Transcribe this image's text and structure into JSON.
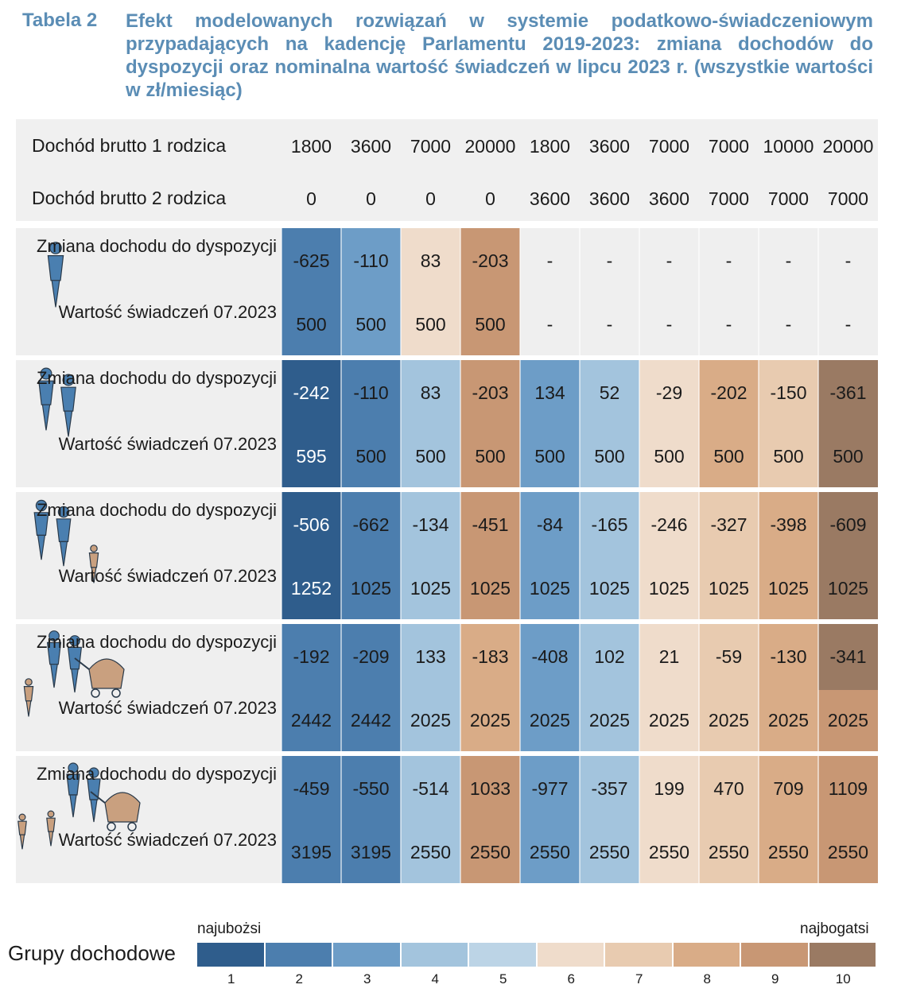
{
  "caption": {
    "label": "Tabela 2",
    "text": "Efekt modelowanych rozwiązań w systemie podatkowo-świadczeniowym przypadających na kadencję Parlamentu 2019-2023: zmiana dochodów do dyspozycji oraz nominalna wartość świadczeń w lipcu 2023 r. (wszystkie wartości w zł/miesiąc)"
  },
  "header": {
    "parent1_label": "Dochód brutto 1 rodzica",
    "parent2_label": "Dochód brutto 2 rodzica",
    "parent1": [
      "1800",
      "3600",
      "7000",
      "20000",
      "1800",
      "3600",
      "7000",
      "7000",
      "10000",
      "20000"
    ],
    "parent2": [
      "0",
      "0",
      "0",
      "0",
      "3600",
      "3600",
      "3600",
      "7000",
      "7000",
      "7000"
    ]
  },
  "row_labels": {
    "change": "Zmiana dochodu do dyspozycji",
    "benefit": "Wartość świadczeń 07.2023"
  },
  "families": [
    {
      "icon": "single-parent-one-child-icon",
      "change": [
        "-625",
        "-110",
        "83",
        "-203",
        "-",
        "-",
        "-",
        "-",
        "-",
        "-"
      ],
      "benefit": [
        "500",
        "500",
        "500",
        "500",
        "-",
        "-",
        "-",
        "-",
        "-",
        "-"
      ],
      "change_groups": [
        2,
        3,
        6,
        9,
        0,
        0,
        0,
        0,
        0,
        0
      ],
      "benefit_groups": [
        2,
        3,
        6,
        9,
        0,
        0,
        0,
        0,
        0,
        0
      ]
    },
    {
      "icon": "couple-one-child-icon",
      "change": [
        "-242",
        "-110",
        "83",
        "-203",
        "134",
        "52",
        "-29",
        "-202",
        "-150",
        "-361"
      ],
      "benefit": [
        "595",
        "500",
        "500",
        "500",
        "500",
        "500",
        "500",
        "500",
        "500",
        "500"
      ],
      "change_groups": [
        1,
        2,
        4,
        9,
        3,
        4,
        6,
        8,
        7,
        10
      ],
      "benefit_groups": [
        1,
        2,
        4,
        9,
        3,
        4,
        6,
        8,
        7,
        10
      ]
    },
    {
      "icon": "couple-two-children-icon",
      "change": [
        "-506",
        "-662",
        "-134",
        "-451",
        "-84",
        "-165",
        "-246",
        "-327",
        "-398",
        "-609"
      ],
      "benefit": [
        "1252",
        "1025",
        "1025",
        "1025",
        "1025",
        "1025",
        "1025",
        "1025",
        "1025",
        "1025"
      ],
      "change_groups": [
        1,
        2,
        4,
        9,
        3,
        4,
        6,
        7,
        8,
        10
      ],
      "benefit_groups": [
        1,
        2,
        4,
        9,
        3,
        4,
        6,
        7,
        8,
        10
      ]
    },
    {
      "icon": "couple-two-children-stroller-icon",
      "change": [
        "-192",
        "-209",
        "133",
        "-183",
        "-408",
        "102",
        "21",
        "-59",
        "-130",
        "-341"
      ],
      "benefit": [
        "2442",
        "2442",
        "2025",
        "2025",
        "2025",
        "2025",
        "2025",
        "2025",
        "2025",
        "2025"
      ],
      "change_groups": [
        2,
        2,
        4,
        8,
        3,
        4,
        6,
        7,
        8,
        10
      ],
      "benefit_groups": [
        2,
        2,
        4,
        8,
        3,
        4,
        6,
        7,
        8,
        9
      ]
    },
    {
      "icon": "couple-three-children-stroller-icon",
      "change": [
        "-459",
        "-550",
        "-514",
        "1033",
        "-977",
        "-357",
        "199",
        "470",
        "709",
        "1109"
      ],
      "benefit": [
        "3195",
        "3195",
        "2550",
        "2550",
        "2550",
        "2550",
        "2550",
        "2550",
        "2550",
        "2550"
      ],
      "change_groups": [
        2,
        2,
        4,
        9,
        3,
        4,
        6,
        7,
        8,
        9
      ],
      "benefit_groups": [
        2,
        2,
        4,
        9,
        3,
        4,
        6,
        7,
        8,
        9
      ]
    }
  ],
  "legend": {
    "title": "Grupy dochodowe",
    "poorest": "najubożsi",
    "richest": "najbogatsi",
    "groups": [
      "1",
      "2",
      "3",
      "4",
      "5",
      "6",
      "7",
      "8",
      "9",
      "10"
    ],
    "colors": [
      "#2f5d8c",
      "#4c7eae",
      "#6d9dc7",
      "#a3c4dd",
      "#bcd4e6",
      "#efdccb",
      "#e8cbb0",
      "#d9ac87",
      "#c89774",
      "#9a7a63"
    ]
  }
}
